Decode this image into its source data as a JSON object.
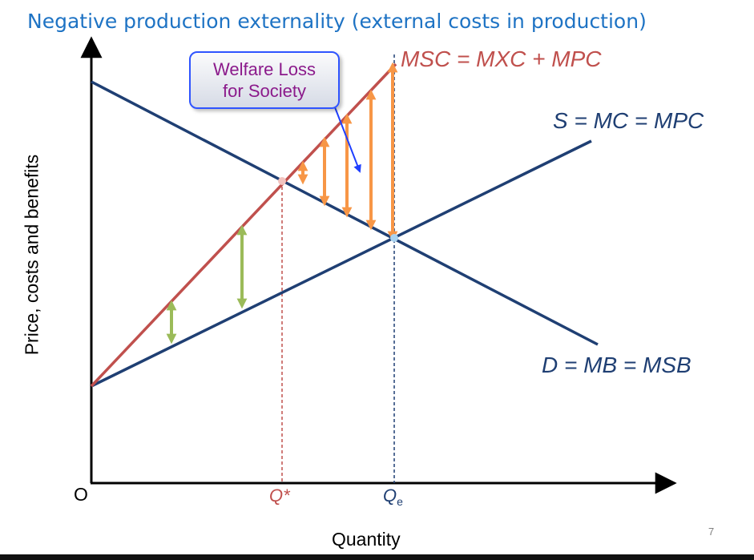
{
  "title": "Negative production externality (external costs in production)",
  "axes": {
    "y_label": "Price, costs and benefits",
    "x_label": "Quantity",
    "origin": "O"
  },
  "quantities": {
    "q_star": "Q*",
    "q_e": "Q",
    "q_e_subscript": "e"
  },
  "curves": {
    "msc": "MSC = MXC + MPC",
    "supply": "S = MC = MPC",
    "demand": "D = MB = MSB"
  },
  "callout": {
    "line1": "Welfare Loss",
    "line2": "for Society"
  },
  "page_number": "7",
  "colors": {
    "title": "#1e73c4",
    "curve_blue": "#1f3f73",
    "msc_red": "#c0504d",
    "welfare_orange": "#f79646",
    "external_green": "#9bbb59",
    "callout_text": "#8b1a8b",
    "callout_border": "#2f54ff"
  }
}
